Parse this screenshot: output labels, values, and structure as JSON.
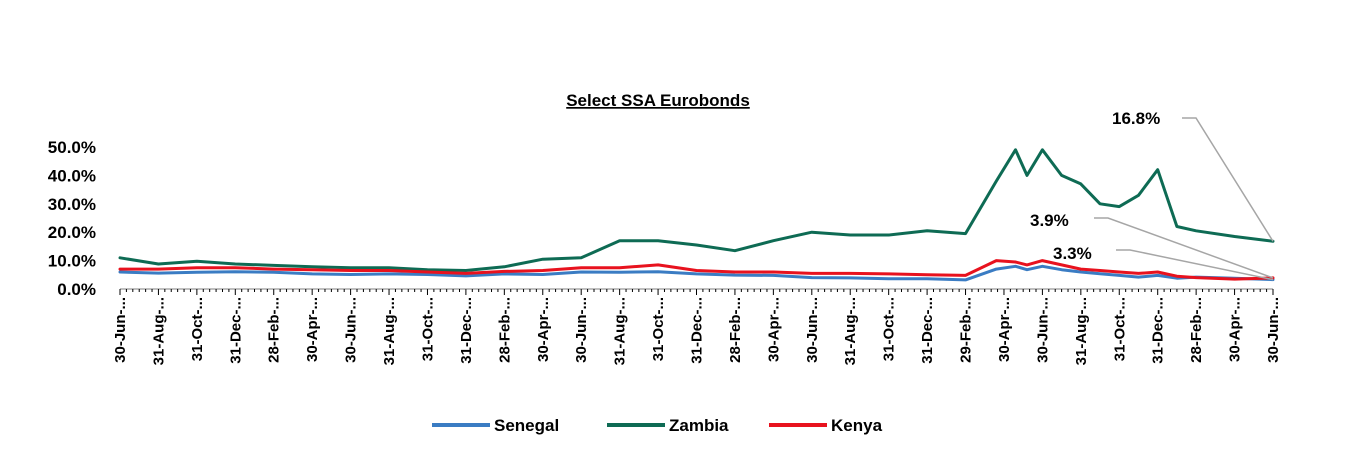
{
  "chart_data": {
    "type": "line",
    "title": "Select SSA Eurobonds",
    "xlabel": "",
    "ylabel": "",
    "ylim": [
      0,
      50
    ],
    "y_ticks": [
      "0.0%",
      "10.0%",
      "20.0%",
      "30.0%",
      "40.0%",
      "50.0%"
    ],
    "x_tick_labels": [
      "30-Jun-...",
      "31-Aug-...",
      "31-Oct-...",
      "31-Dec-...",
      "28-Feb-...",
      "30-Apr-...",
      "30-Jun-...",
      "31-Aug-...",
      "31-Oct-...",
      "31-Dec-...",
      "28-Feb-...",
      "30-Apr-...",
      "30-Jun-...",
      "31-Aug-...",
      "31-Oct-...",
      "31-Dec-...",
      "28-Feb-...",
      "30-Apr-...",
      "30-Jun-...",
      "31-Aug-...",
      "31-Oct-...",
      "31-Dec-...",
      "29-Feb-...",
      "30-Apr-...",
      "30-Jun-...",
      "31-Aug-...",
      "31-Oct-...",
      "31-Dec-...",
      "28-Feb-...",
      "30-Apr-...",
      "30-Jun-..."
    ],
    "x": [
      0,
      1,
      2,
      3,
      4,
      5,
      6,
      7,
      8,
      9,
      10,
      11,
      12,
      13,
      14,
      15,
      16,
      17,
      18,
      19,
      20,
      21,
      22,
      22.8,
      23.3,
      23.6,
      24,
      24.5,
      25,
      25.5,
      26,
      26.5,
      27,
      27.5,
      28,
      29,
      30
    ],
    "series": [
      {
        "name": "Senegal",
        "color": "#3A7CC3",
        "values": [
          6.0,
          5.6,
          5.9,
          6.1,
          5.9,
          5.3,
          5.1,
          5.3,
          5.1,
          4.6,
          5.3,
          5.1,
          6.0,
          5.9,
          6.1,
          5.3,
          4.9,
          4.8,
          4.0,
          3.9,
          3.6,
          3.6,
          3.2,
          7.0,
          8.0,
          6.8,
          8.0,
          6.8,
          6.0,
          5.4,
          4.8,
          4.2,
          4.8,
          3.8,
          4.2,
          3.8,
          3.3
        ]
      },
      {
        "name": "Zambia",
        "color": "#0E6B54",
        "values": [
          11.0,
          8.8,
          9.8,
          8.8,
          8.3,
          7.8,
          7.5,
          7.5,
          6.8,
          6.5,
          7.8,
          10.5,
          11.0,
          17.0,
          17.0,
          15.5,
          13.5,
          17.0,
          20.0,
          19.0,
          19.0,
          20.5,
          19.5,
          38.0,
          49.0,
          40.0,
          49.0,
          40.0,
          37.0,
          30.0,
          29.0,
          33.0,
          42.0,
          22.0,
          20.5,
          18.5,
          16.8
        ]
      },
      {
        "name": "Kenya",
        "color": "#E8121E",
        "values": [
          7.0,
          7.0,
          7.5,
          7.5,
          7.0,
          6.8,
          6.5,
          6.5,
          6.0,
          5.5,
          6.2,
          6.5,
          7.5,
          7.5,
          8.5,
          6.5,
          6.0,
          6.0,
          5.5,
          5.5,
          5.3,
          5.0,
          4.8,
          10.0,
          9.5,
          8.5,
          10.0,
          8.5,
          7.0,
          6.5,
          6.0,
          5.5,
          6.0,
          4.5,
          4.0,
          3.5,
          3.9
        ]
      }
    ],
    "annotations": [
      {
        "text": "16.8%",
        "series": "Zambia"
      },
      {
        "text": "3.9%",
        "series": "Kenya"
      },
      {
        "text": "3.3%",
        "series": "Senegal"
      }
    ],
    "legend_placement": "bottom-center",
    "grid": false
  }
}
